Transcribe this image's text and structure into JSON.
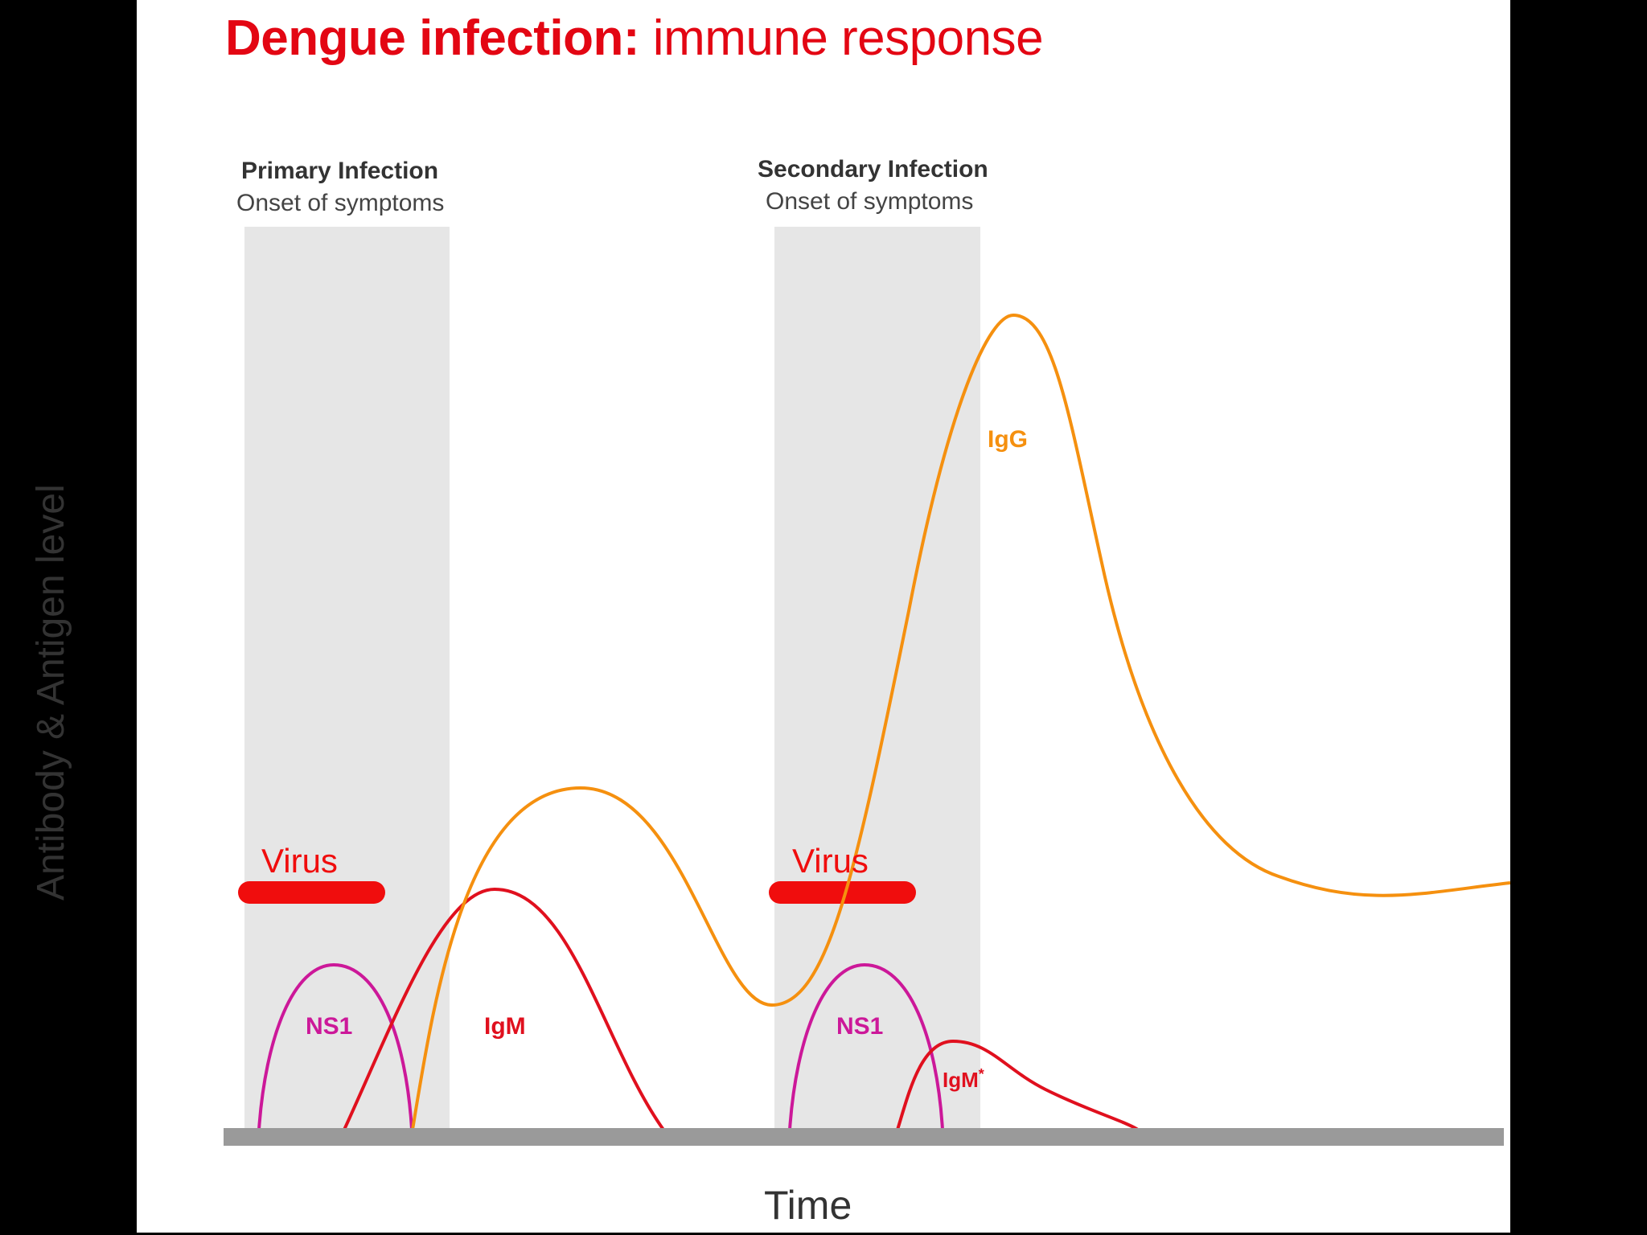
{
  "title": {
    "bold": "Dengue infection:",
    "light": " immune response"
  },
  "phases": [
    {
      "name": "Primary Infection",
      "subtitle": "Onset of symptoms"
    },
    {
      "name": "Secondary Infection",
      "subtitle": "Onset of symptoms"
    }
  ],
  "chart_data": {
    "type": "line",
    "title": "Dengue infection: immune response",
    "xlabel": "Time",
    "ylabel": "Antibody & Antigen level",
    "x_scale": "unlabeled",
    "y_scale": "unlabeled",
    "labels": {
      "virus_1": "Virus",
      "virus_2": "Virus",
      "ns1_1": "NS1",
      "ns1_2": "NS1",
      "igm_1": "IgM",
      "igm_2": "IgM",
      "igm_2_superscript": "*",
      "igg": "IgG"
    },
    "colors": {
      "title": "#e30613",
      "virus": "#f00d0d",
      "ns1": "#cc1899",
      "igm": "#e0101e",
      "igg": "#f5900f",
      "shading": "#e6e6e6",
      "baseline": "#9a9a9a"
    }
  }
}
